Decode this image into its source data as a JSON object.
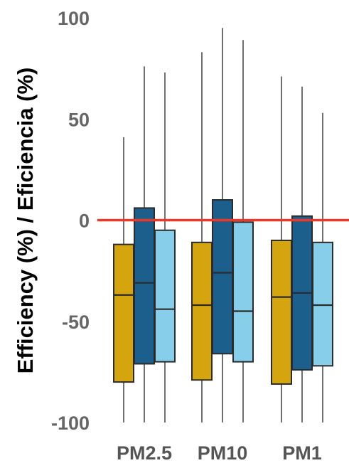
{
  "chart_data": {
    "type": "box",
    "title": "",
    "xlabel": "",
    "ylabel": "Efficiency (%) / Eficiencia (%)",
    "ylim": [
      -100,
      100
    ],
    "yticks": [
      100,
      50,
      0,
      -50,
      -100
    ],
    "categories": [
      "PM2.5",
      "PM10",
      "PM1"
    ],
    "reference_line": {
      "y": 0,
      "color": "#e8392a"
    },
    "grid": false,
    "legend": "none",
    "series": [
      {
        "color": "#d4a50f",
        "boxes": [
          {
            "min": -100,
            "q1": -80,
            "median": -37,
            "q3": -12,
            "max": 41
          },
          {
            "min": -100,
            "q1": -79,
            "median": -42,
            "q3": -11,
            "max": 83
          },
          {
            "min": -100,
            "q1": -81,
            "median": -38,
            "q3": -10,
            "max": 71
          }
        ]
      },
      {
        "color": "#1d5f8c",
        "boxes": [
          {
            "min": -100,
            "q1": -71,
            "median": -31,
            "q3": 6,
            "max": 76
          },
          {
            "min": -100,
            "q1": -66,
            "median": -26,
            "q3": 10,
            "max": 95
          },
          {
            "min": -100,
            "q1": -74,
            "median": -36,
            "q3": 2,
            "max": 66
          }
        ]
      },
      {
        "color": "#87ceeb",
        "boxes": [
          {
            "min": -100,
            "q1": -70,
            "median": -44,
            "q3": -5,
            "max": 73
          },
          {
            "min": -100,
            "q1": -70,
            "median": -45,
            "q3": -1,
            "max": 89
          },
          {
            "min": -100,
            "q1": -72,
            "median": -42,
            "q3": -11,
            "max": 53
          }
        ]
      }
    ]
  }
}
